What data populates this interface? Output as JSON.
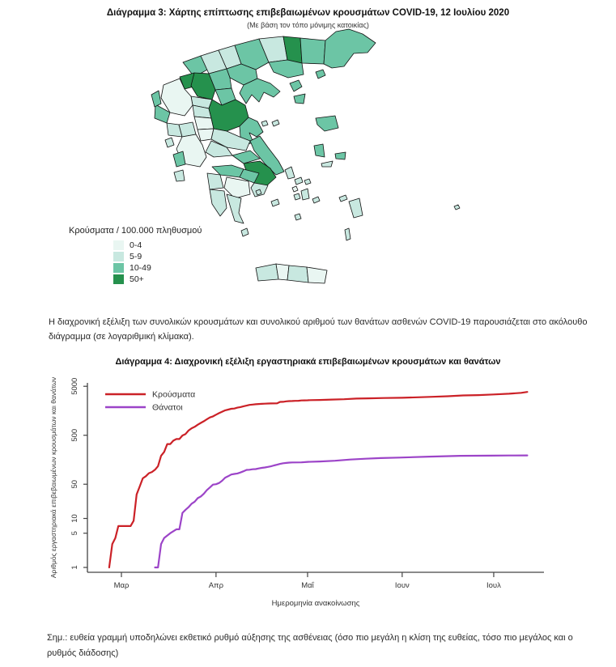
{
  "page": {
    "map_section": {
      "title": "Διάγραμμα 3: Χάρτης επίπτωσης επιβεβαιωμένων κρουσμάτων COVID-19, 12 Ιουλίου 2020",
      "subtitle": "(Με βάση τον τόπο μόνιμης κατοικίας)",
      "legend": {
        "title": "Κρούσματα / 100.000 πληθυσμού",
        "classes": [
          {
            "label": "0-4",
            "color": "#e9f6f2"
          },
          {
            "label": "5-9",
            "color": "#c8e8e0"
          },
          {
            "label": "10-49",
            "color": "#6cc5a5"
          },
          {
            "label": "50+",
            "color": "#25914d"
          }
        ]
      },
      "regions": [
        {
          "id": "florina",
          "class": 2
        },
        {
          "id": "pella",
          "class": 1
        },
        {
          "id": "kilkis",
          "class": 1
        },
        {
          "id": "serres",
          "class": 2
        },
        {
          "id": "drama",
          "class": 1
        },
        {
          "id": "xanthi",
          "class": 3
        },
        {
          "id": "rodopi",
          "class": 2
        },
        {
          "id": "evros",
          "class": 2
        },
        {
          "id": "kavala",
          "class": 2
        },
        {
          "id": "thasos",
          "class": 2
        },
        {
          "id": "samothraki",
          "class": 2
        },
        {
          "id": "thessaloniki",
          "class": 2
        },
        {
          "id": "chalkidiki",
          "class": 2
        },
        {
          "id": "imathia",
          "class": 2
        },
        {
          "id": "pieria",
          "class": 2
        },
        {
          "id": "kastoria",
          "class": 3
        },
        {
          "id": "kozani",
          "class": 3
        },
        {
          "id": "grevena",
          "class": 1
        },
        {
          "id": "ioannina",
          "class": 0
        },
        {
          "id": "thesprotia",
          "class": 2
        },
        {
          "id": "preveza",
          "class": 1
        },
        {
          "id": "arta",
          "class": 1
        },
        {
          "id": "trikala",
          "class": 1
        },
        {
          "id": "karditsa",
          "class": 0
        },
        {
          "id": "larissa",
          "class": 3
        },
        {
          "id": "magnisia",
          "class": 2
        },
        {
          "id": "skiathos",
          "class": 1
        },
        {
          "id": "alonnisos",
          "class": 1
        },
        {
          "id": "evrytania",
          "class": 0
        },
        {
          "id": "fthiotida",
          "class": 1
        },
        {
          "id": "aitoloakarnania",
          "class": 0
        },
        {
          "id": "fokida",
          "class": 1
        },
        {
          "id": "viotia",
          "class": 2
        },
        {
          "id": "evia",
          "class": 2
        },
        {
          "id": "attica",
          "class": 3
        },
        {
          "id": "kerkyra",
          "class": 2
        },
        {
          "id": "lefkada",
          "class": 1
        },
        {
          "id": "kefalonia",
          "class": 2
        },
        {
          "id": "zakynthos",
          "class": 1
        },
        {
          "id": "achaia",
          "class": 2
        },
        {
          "id": "korinthia",
          "class": 2
        },
        {
          "id": "argolida",
          "class": 1
        },
        {
          "id": "arkadia",
          "class": 0
        },
        {
          "id": "ilia",
          "class": 1
        },
        {
          "id": "messinia",
          "class": 1
        },
        {
          "id": "lakonia",
          "class": 1
        },
        {
          "id": "kythira",
          "class": 1
        },
        {
          "id": "chania",
          "class": 1
        },
        {
          "id": "rethymno",
          "class": 0
        },
        {
          "id": "irakleio",
          "class": 1
        },
        {
          "id": "lasithi",
          "class": 0
        },
        {
          "id": "limnos",
          "class": 2
        },
        {
          "id": "lesvos",
          "class": 2
        },
        {
          "id": "chios",
          "class": 2
        },
        {
          "id": "samos",
          "class": 2
        },
        {
          "id": "ikaria",
          "class": 1
        },
        {
          "id": "andros",
          "class": 1
        },
        {
          "id": "tinos",
          "class": 1
        },
        {
          "id": "mykonos",
          "class": 1
        },
        {
          "id": "syros",
          "class": 0
        },
        {
          "id": "paros",
          "class": 1
        },
        {
          "id": "naxos",
          "class": 1
        },
        {
          "id": "milos",
          "class": 1
        },
        {
          "id": "santorini",
          "class": 1
        },
        {
          "id": "amorgos",
          "class": 1
        },
        {
          "id": "kos",
          "class": 1
        },
        {
          "id": "rodos",
          "class": 1
        },
        {
          "id": "karpathos",
          "class": 1
        },
        {
          "id": "kastellorizo",
          "class": 1
        },
        {
          "id": "aigina",
          "class": 1
        }
      ]
    },
    "paragraph": "Η διαχρονική εξέλιξη των συνολικών κρουσμάτων και συνολικού αριθμού των θανάτων ασθενών COVID-19 παρουσιάζεται στο ακόλουθο διάγραμμα (σε λογαριθμική κλίμακα).",
    "chart_section": {
      "title": "Διάγραμμα 4: Διαχρονική εξέλιξη εργαστηριακά επιβεβαιωμένων κρουσμάτων και θανάτων",
      "note": "Σημ.: ευθεία γραμμή υποδηλώνει εκθετικό ρυθμό αύξησης της ασθένειας (όσο πιο μεγάλη η κλίση της ευθείας, τόσο πιο μεγάλος και ο ρυθμός διάδοσης)"
    }
  },
  "chart_data": {
    "type": "line",
    "title": "Διάγραμμα 4: Διαχρονική εξέλιξη εργαστηριακά επιβεβαιωμένων κρουσμάτων και θανάτων",
    "xlabel": "Ημερομηνία ανακοίνωσης",
    "ylabel": "Αριθμός εργαστηριακά επιβεβαιωμένων κρουσμάτων και θανάτων",
    "y_scale": "log",
    "ylim": [
      1,
      5000
    ],
    "y_ticks": [
      1,
      5,
      10,
      50,
      500,
      5000
    ],
    "x_day0_date": "26 Φεβ 2020",
    "x_range_days": [
      -7,
      143
    ],
    "x_ticks": [
      {
        "day": 4,
        "label": "Μαρ"
      },
      {
        "day": 35,
        "label": "Απρ"
      },
      {
        "day": 65,
        "label": "Μαΐ"
      },
      {
        "day": 96,
        "label": "Ιουν"
      },
      {
        "day": 126,
        "label": "Ιουλ"
      }
    ],
    "legend_position": "top-left",
    "grid": false,
    "series": [
      {
        "name": "Κρούσματα",
        "color": "#cb2127",
        "points": [
          [
            0,
            1
          ],
          [
            1,
            3
          ],
          [
            2,
            4
          ],
          [
            3,
            7
          ],
          [
            5,
            7
          ],
          [
            7,
            7
          ],
          [
            8,
            9
          ],
          [
            9,
            31
          ],
          [
            10,
            45
          ],
          [
            11,
            66
          ],
          [
            12,
            73
          ],
          [
            13,
            84
          ],
          [
            14,
            89
          ],
          [
            15,
            99
          ],
          [
            16,
            117
          ],
          [
            17,
            190
          ],
          [
            18,
            228
          ],
          [
            19,
            331
          ],
          [
            20,
            331
          ],
          [
            21,
            387
          ],
          [
            22,
            418
          ],
          [
            23,
            418
          ],
          [
            24,
            495
          ],
          [
            25,
            530
          ],
          [
            26,
            624
          ],
          [
            27,
            695
          ],
          [
            28,
            743
          ],
          [
            29,
            821
          ],
          [
            30,
            892
          ],
          [
            31,
            966
          ],
          [
            32,
            1061
          ],
          [
            33,
            1156
          ],
          [
            34,
            1212
          ],
          [
            35,
            1314
          ],
          [
            36,
            1415
          ],
          [
            37,
            1514
          ],
          [
            38,
            1613
          ],
          [
            39,
            1673
          ],
          [
            40,
            1735
          ],
          [
            41,
            1755
          ],
          [
            42,
            1832
          ],
          [
            43,
            1884
          ],
          [
            44,
            1955
          ],
          [
            45,
            2011
          ],
          [
            46,
            2081
          ],
          [
            47,
            2114
          ],
          [
            48,
            2145
          ],
          [
            49,
            2170
          ],
          [
            50,
            2192
          ],
          [
            51,
            2207
          ],
          [
            52,
            2224
          ],
          [
            53,
            2235
          ],
          [
            55,
            2245
          ],
          [
            56,
            2401
          ],
          [
            57,
            2408
          ],
          [
            58,
            2463
          ],
          [
            59,
            2490
          ],
          [
            60,
            2506
          ],
          [
            61,
            2517
          ],
          [
            62,
            2534
          ],
          [
            63,
            2566
          ],
          [
            64,
            2576
          ],
          [
            65,
            2591
          ],
          [
            66,
            2612
          ],
          [
            69,
            2632
          ],
          [
            73,
            2678
          ],
          [
            77,
            2726
          ],
          [
            81,
            2810
          ],
          [
            85,
            2840
          ],
          [
            90,
            2878
          ],
          [
            96,
            2915
          ],
          [
            101,
            2980
          ],
          [
            106,
            3049
          ],
          [
            111,
            3134
          ],
          [
            116,
            3256
          ],
          [
            121,
            3310
          ],
          [
            126,
            3409
          ],
          [
            131,
            3519
          ],
          [
            135,
            3672
          ],
          [
            137,
            3826
          ]
        ]
      },
      {
        "name": "Θάνατοι",
        "color": "#9c44c8",
        "points": [
          [
            15,
            1
          ],
          [
            16,
            1
          ],
          [
            17,
            3
          ],
          [
            18,
            4
          ],
          [
            20,
            5
          ],
          [
            22,
            6
          ],
          [
            23,
            6
          ],
          [
            24,
            13
          ],
          [
            25,
            15
          ],
          [
            26,
            17
          ],
          [
            27,
            20
          ],
          [
            28,
            22
          ],
          [
            29,
            26
          ],
          [
            30,
            28
          ],
          [
            31,
            32
          ],
          [
            32,
            38
          ],
          [
            33,
            43
          ],
          [
            34,
            49
          ],
          [
            35,
            50
          ],
          [
            36,
            53
          ],
          [
            37,
            59
          ],
          [
            38,
            68
          ],
          [
            39,
            73
          ],
          [
            40,
            79
          ],
          [
            41,
            81
          ],
          [
            42,
            83
          ],
          [
            43,
            87
          ],
          [
            44,
            92
          ],
          [
            45,
            98
          ],
          [
            46,
            99
          ],
          [
            47,
            101
          ],
          [
            48,
            102
          ],
          [
            49,
            105
          ],
          [
            50,
            108
          ],
          [
            51,
            110
          ],
          [
            52,
            113
          ],
          [
            53,
            116
          ],
          [
            54,
            121
          ],
          [
            55,
            125
          ],
          [
            56,
            130
          ],
          [
            57,
            134
          ],
          [
            58,
            136
          ],
          [
            59,
            138
          ],
          [
            60,
            139
          ],
          [
            63,
            140
          ],
          [
            65,
            143
          ],
          [
            69,
            146
          ],
          [
            74,
            151
          ],
          [
            79,
            160
          ],
          [
            84,
            166
          ],
          [
            89,
            171
          ],
          [
            95,
            175
          ],
          [
            105,
            183
          ],
          [
            115,
            190
          ],
          [
            125,
            192
          ],
          [
            131,
            193
          ],
          [
            137,
            194
          ]
        ]
      }
    ]
  }
}
